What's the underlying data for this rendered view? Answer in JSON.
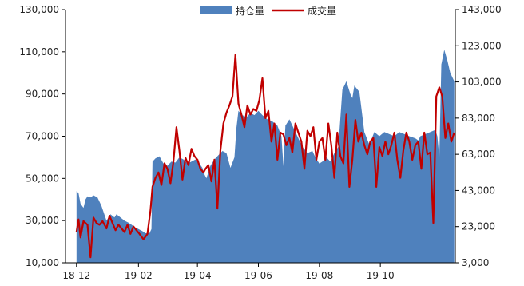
{
  "chart_data": {
    "type": "area",
    "title": "",
    "legend_position": "top-center",
    "x_ticks": [
      "18-12",
      "19-02",
      "19-04",
      "19-06",
      "19-08",
      "19-10"
    ],
    "y_left": {
      "ylim": [
        10000,
        130000
      ],
      "ticks": [
        "10,000",
        "30,000",
        "50,000",
        "70,000",
        "90,000",
        "110,000",
        "130,000"
      ]
    },
    "y_right": {
      "ylim": [
        3000,
        143000
      ],
      "ticks": [
        "3,000",
        "23,000",
        "43,000",
        "63,000",
        "83,000",
        "103,000",
        "123,000",
        "143,000"
      ]
    },
    "series": [
      {
        "name": "持仓量",
        "axis": "left",
        "kind": "area",
        "color": "#4f81bd",
        "x": [
          "2018-12-01",
          "2018-12-03",
          "2018-12-05",
          "2018-12-08",
          "2018-12-10",
          "2018-12-12",
          "2018-12-15",
          "2018-12-18",
          "2018-12-22",
          "2018-12-26",
          "2018-12-31",
          "2019-01-04",
          "2019-01-08",
          "2019-01-10",
          "2019-01-14",
          "2019-01-18",
          "2019-01-22",
          "2019-01-25",
          "2019-01-28",
          "2019-02-01",
          "2019-02-05",
          "2019-02-08",
          "2019-02-12",
          "2019-02-14",
          "2019-02-15",
          "2019-02-18",
          "2019-02-22",
          "2019-02-26",
          "2019-03-02",
          "2019-03-06",
          "2019-03-10",
          "2019-03-14",
          "2019-03-18",
          "2019-03-22",
          "2019-03-26",
          "2019-03-30",
          "2019-04-03",
          "2019-04-06",
          "2019-04-08",
          "2019-04-10",
          "2019-04-14",
          "2019-04-18",
          "2019-04-22",
          "2019-04-26",
          "2019-04-30",
          "2019-05-04",
          "2019-05-08",
          "2019-05-10",
          "2019-05-12",
          "2019-05-16",
          "2019-05-20",
          "2019-05-24",
          "2019-05-28",
          "2019-06-01",
          "2019-06-05",
          "2019-06-10",
          "2019-06-15",
          "2019-06-20",
          "2019-06-24",
          "2019-06-26",
          "2019-06-28",
          "2019-07-02",
          "2019-07-06",
          "2019-07-10",
          "2019-07-15",
          "2019-07-20",
          "2019-07-25",
          "2019-07-28",
          "2019-08-01",
          "2019-08-04",
          "2019-08-08",
          "2019-08-12",
          "2019-08-16",
          "2019-08-20",
          "2019-08-24",
          "2019-08-28",
          "2019-09-01",
          "2019-09-03",
          "2019-09-05",
          "2019-09-10",
          "2019-09-15",
          "2019-09-20",
          "2019-09-25",
          "2019-09-30",
          "2019-10-05",
          "2019-10-10",
          "2019-10-15",
          "2019-10-20",
          "2019-10-25",
          "2019-10-30",
          "2019-11-05",
          "2019-11-08",
          "2019-11-10",
          "2019-11-15",
          "2019-11-20",
          "2019-11-25",
          "2019-11-27",
          "2019-11-29",
          "2019-12-01",
          "2019-12-04",
          "2019-12-07",
          "2019-12-10",
          "2019-12-12",
          "2019-12-14"
        ],
        "values": [
          44000,
          43000,
          38000,
          36000,
          40000,
          41500,
          41000,
          42000,
          41000,
          37000,
          30000,
          33000,
          31500,
          33000,
          31500,
          30000,
          29000,
          28000,
          27000,
          26000,
          25000,
          24000,
          24000,
          26000,
          58000,
          59500,
          60500,
          57000,
          56000,
          58000,
          57500,
          60000,
          59000,
          57000,
          58000,
          59000,
          57000,
          55000,
          52000,
          50000,
          56000,
          59000,
          61000,
          63000,
          62000,
          55000,
          60000,
          74000,
          82000,
          80000,
          79000,
          81000,
          80000,
          82000,
          80000,
          78000,
          77000,
          75000,
          70000,
          56000,
          75000,
          78000,
          74000,
          70000,
          65000,
          62000,
          63000,
          60000,
          57000,
          58000,
          60000,
          58000,
          62000,
          65000,
          92000,
          96000,
          90000,
          88000,
          94000,
          91000,
          72000,
          66000,
          72000,
          70000,
          72000,
          71000,
          70000,
          72000,
          71000,
          70000,
          69000,
          68000,
          70000,
          71000,
          72000,
          73000,
          70000,
          60000,
          104000,
          111000,
          106000,
          100000,
          98000,
          96000
        ]
      },
      {
        "name": "成交量",
        "axis": "right",
        "kind": "line",
        "color": "#c00000",
        "x": [
          "2018-12-01",
          "2018-12-03",
          "2018-12-05",
          "2018-12-08",
          "2018-12-10",
          "2018-12-12",
          "2018-12-15",
          "2018-12-18",
          "2018-12-21",
          "2018-12-24",
          "2018-12-27",
          "2018-12-31",
          "2019-01-03",
          "2019-01-06",
          "2019-01-09",
          "2019-01-12",
          "2019-01-15",
          "2019-01-18",
          "2019-01-21",
          "2019-01-24",
          "2019-01-27",
          "2019-01-30",
          "2019-02-02",
          "2019-02-06",
          "2019-02-10",
          "2019-02-13",
          "2019-02-15",
          "2019-02-18",
          "2019-02-21",
          "2019-02-24",
          "2019-02-27",
          "2019-03-02",
          "2019-03-05",
          "2019-03-08",
          "2019-03-11",
          "2019-03-14",
          "2019-03-17",
          "2019-03-20",
          "2019-03-23",
          "2019-03-26",
          "2019-03-29",
          "2019-04-01",
          "2019-04-04",
          "2019-04-07",
          "2019-04-09",
          "2019-04-12",
          "2019-04-15",
          "2019-04-18",
          "2019-04-21",
          "2019-04-24",
          "2019-04-27",
          "2019-04-30",
          "2019-05-03",
          "2019-05-06",
          "2019-05-09",
          "2019-05-12",
          "2019-05-15",
          "2019-05-18",
          "2019-05-21",
          "2019-05-24",
          "2019-05-27",
          "2019-05-30",
          "2019-06-02",
          "2019-06-05",
          "2019-06-08",
          "2019-06-11",
          "2019-06-14",
          "2019-06-17",
          "2019-06-20",
          "2019-06-23",
          "2019-06-26",
          "2019-06-29",
          "2019-07-02",
          "2019-07-05",
          "2019-07-08",
          "2019-07-11",
          "2019-07-14",
          "2019-07-17",
          "2019-07-20",
          "2019-07-23",
          "2019-07-26",
          "2019-07-29",
          "2019-08-01",
          "2019-08-04",
          "2019-08-07",
          "2019-08-10",
          "2019-08-13",
          "2019-08-16",
          "2019-08-19",
          "2019-08-22",
          "2019-08-25",
          "2019-08-28",
          "2019-08-31",
          "2019-09-03",
          "2019-09-06",
          "2019-09-09",
          "2019-09-12",
          "2019-09-15",
          "2019-09-18",
          "2019-09-21",
          "2019-09-24",
          "2019-09-27",
          "2019-09-30",
          "2019-10-03",
          "2019-10-06",
          "2019-10-09",
          "2019-10-12",
          "2019-10-15",
          "2019-10-18",
          "2019-10-21",
          "2019-10-24",
          "2019-10-27",
          "2019-10-30",
          "2019-11-02",
          "2019-11-05",
          "2019-11-08",
          "2019-11-11",
          "2019-11-14",
          "2019-11-17",
          "2019-11-20",
          "2019-11-23",
          "2019-11-26",
          "2019-11-29",
          "2019-12-02",
          "2019-12-05",
          "2019-12-08",
          "2019-12-11",
          "2019-12-14"
        ],
        "values": [
          20000,
          27000,
          17000,
          26000,
          25000,
          24000,
          6000,
          28000,
          25000,
          24000,
          26000,
          22000,
          29000,
          25000,
          21000,
          24000,
          22000,
          20000,
          24000,
          19000,
          23000,
          21000,
          19000,
          16000,
          19000,
          32000,
          45000,
          50000,
          53000,
          46000,
          58000,
          55000,
          47000,
          59000,
          78000,
          65000,
          49000,
          61000,
          57000,
          66000,
          62000,
          60000,
          55000,
          53000,
          55000,
          57000,
          48000,
          60000,
          33000,
          65000,
          80000,
          86000,
          90000,
          95000,
          118000,
          91000,
          85000,
          78000,
          90000,
          85000,
          88000,
          87000,
          93000,
          105000,
          83000,
          87000,
          70000,
          80000,
          60000,
          75000,
          74000,
          68000,
          72000,
          64000,
          80000,
          75000,
          70000,
          55000,
          76000,
          73000,
          78000,
          60000,
          70000,
          72000,
          60000,
          80000,
          68000,
          50000,
          75000,
          62000,
          58000,
          85000,
          45000,
          60000,
          82000,
          70000,
          75000,
          68000,
          63000,
          70000,
          72000,
          45000,
          67000,
          62000,
          70000,
          63000,
          68000,
          75000,
          60000,
          50000,
          65000,
          75000,
          70000,
          60000,
          68000,
          70000,
          55000,
          75000,
          63000,
          64000,
          25000,
          95000,
          100000,
          95000,
          72000,
          80000,
          70000,
          75000
        ]
      }
    ]
  }
}
